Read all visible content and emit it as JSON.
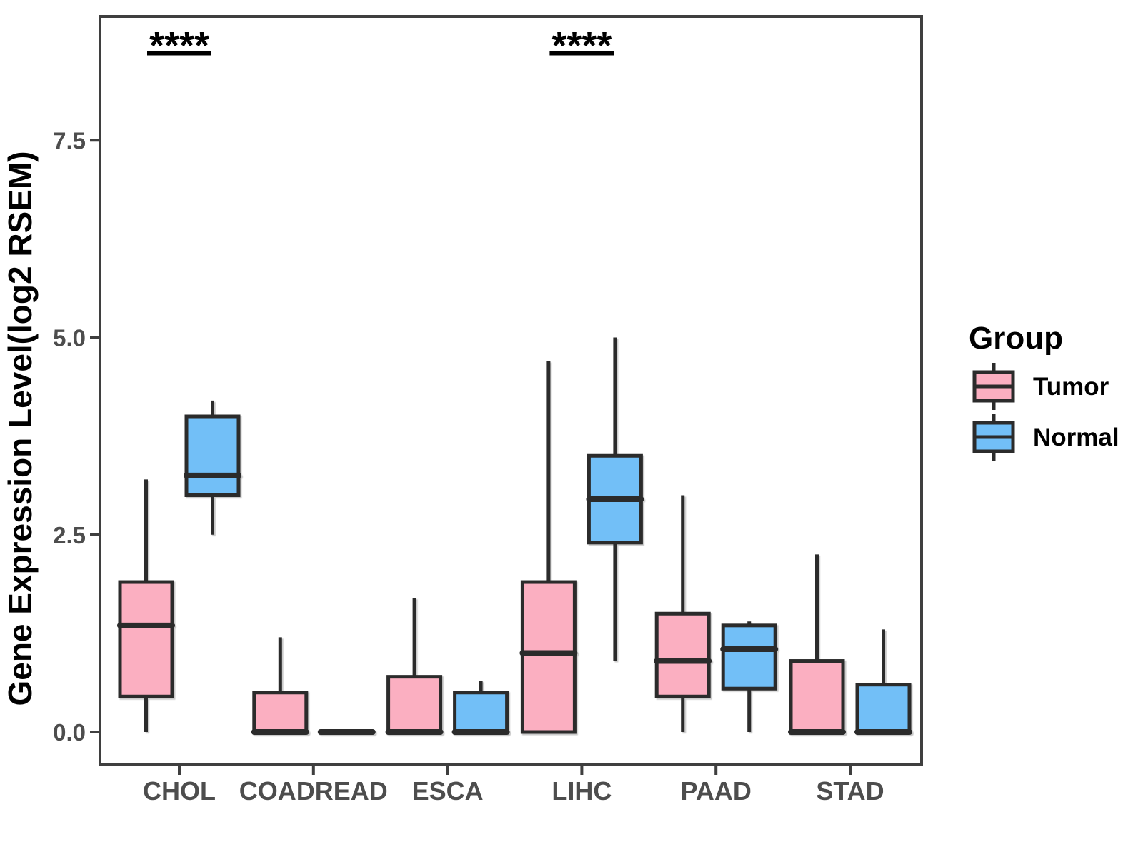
{
  "figure_title": "",
  "legend": {
    "title": "Group"
  },
  "colors": {
    "background": "#FFFFFF",
    "line": "#2B2B2B",
    "panel_border": "#3F3F3F",
    "tick_label": "#4D4D4D",
    "axis_title": "#000000",
    "annotation": "#000000",
    "tumor_fill": "#FBAFC1",
    "normal_fill": "#72BFF7"
  },
  "chart_data": {
    "type": "boxplot",
    "title": "",
    "xlabel": "",
    "ylabel": "Gene Expression Level(log2 RSEM)",
    "categories": [
      "CHOL",
      "COADREAD",
      "ESCA",
      "LIHC",
      "PAAD",
      "STAD"
    ],
    "y_ticks": [
      {
        "value": 0.0,
        "label": "0.0"
      },
      {
        "value": 2.5,
        "label": "2.5"
      },
      {
        "value": 5.0,
        "label": "5.0"
      },
      {
        "value": 7.5,
        "label": "7.5"
      }
    ],
    "ylim": [
      -0.4,
      9.1
    ],
    "grid": false,
    "legend_position": "right",
    "series": [
      {
        "name": "Tumor",
        "color": "#FBAFC1",
        "boxes": [
          {
            "min": 0.0,
            "q1": 0.45,
            "median": 1.35,
            "q3": 1.9,
            "max": 3.2
          },
          {
            "min": 0.0,
            "q1": 0.0,
            "median": 0.0,
            "q3": 0.5,
            "max": 1.2
          },
          {
            "min": 0.0,
            "q1": 0.0,
            "median": 0.0,
            "q3": 0.7,
            "max": 1.7
          },
          {
            "min": 0.0,
            "q1": 0.0,
            "median": 1.0,
            "q3": 1.9,
            "max": 4.7
          },
          {
            "min": 0.0,
            "q1": 0.45,
            "median": 0.9,
            "q3": 1.5,
            "max": 3.0
          },
          {
            "min": 0.0,
            "q1": 0.0,
            "median": 0.0,
            "q3": 0.9,
            "max": 2.25
          }
        ]
      },
      {
        "name": "Normal",
        "color": "#72BFF7",
        "boxes": [
          {
            "min": 2.5,
            "q1": 3.0,
            "median": 3.25,
            "q3": 4.0,
            "max": 4.2
          },
          {
            "min": 0.0,
            "q1": 0.0,
            "median": 0.0,
            "q3": 0.0,
            "max": 0.0
          },
          {
            "min": 0.0,
            "q1": 0.0,
            "median": 0.0,
            "q3": 0.5,
            "max": 0.65
          },
          {
            "min": 0.9,
            "q1": 2.4,
            "median": 2.95,
            "q3": 3.5,
            "max": 5.0
          },
          {
            "min": 0.0,
            "q1": 0.55,
            "median": 1.05,
            "q3": 1.35,
            "max": 1.4
          },
          {
            "min": 0.0,
            "q1": 0.0,
            "median": 0.0,
            "q3": 0.6,
            "max": 1.3
          }
        ]
      }
    ],
    "annotations": [
      {
        "category": "CHOL",
        "label": "****"
      },
      {
        "category": "LIHC",
        "label": "****"
      }
    ]
  }
}
